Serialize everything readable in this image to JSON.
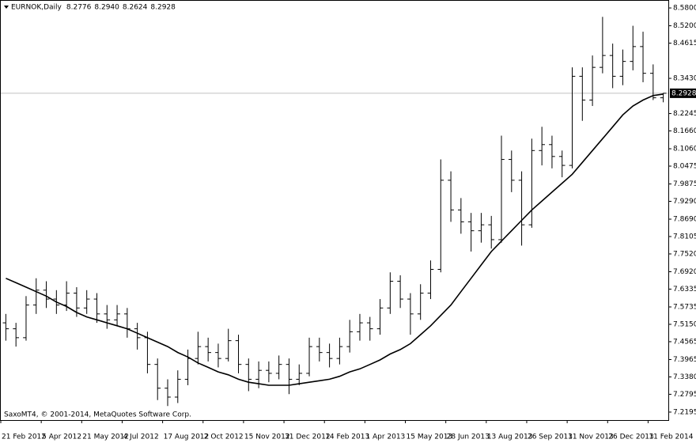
{
  "chart_data": {
    "type": "ohlc",
    "symbol": "EURNOK,Daily",
    "ohlc_text": [
      "8.2776",
      "8.2940",
      "8.2624",
      "8.2928"
    ],
    "footer": "SaxoMT4, © 2001-2014, MetaQuotes Software Corp.",
    "categories": [
      "21 Feb 2012",
      null,
      null,
      null,
      "5 Apr 2012",
      null,
      null,
      null,
      "21 May 2012",
      null,
      null,
      null,
      "4 Jul 2012",
      null,
      null,
      null,
      "17 Aug 2012",
      null,
      null,
      null,
      "2 Oct 2012",
      null,
      null,
      null,
      "15 Nov 2012",
      null,
      null,
      null,
      "31 Dec 2012",
      null,
      null,
      null,
      "14 Feb 2013",
      null,
      null,
      null,
      "1 Apr 2013",
      null,
      null,
      null,
      "15 May 2013",
      null,
      null,
      null,
      "28 Jun 2013",
      null,
      null,
      null,
      "13 Aug 2013",
      null,
      null,
      null,
      "26 Sep 2013",
      null,
      null,
      null,
      "11 Nov 2013",
      null,
      null,
      null,
      "26 Dec 2013",
      null,
      null,
      null,
      "11 Feb 2014",
      null
    ],
    "open": [
      7.52,
      7.5,
      7.47,
      7.58,
      7.63,
      7.6,
      7.58,
      7.62,
      7.57,
      7.6,
      7.55,
      7.53,
      7.55,
      7.5,
      7.47,
      7.38,
      7.3,
      7.27,
      7.33,
      7.4,
      7.44,
      7.42,
      7.4,
      7.46,
      7.38,
      7.33,
      7.36,
      7.35,
      7.38,
      7.33,
      7.35,
      7.44,
      7.42,
      7.4,
      7.44,
      7.49,
      7.52,
      7.5,
      7.57,
      7.66,
      7.6,
      7.55,
      7.62,
      7.7,
      8.0,
      7.9,
      7.86,
      7.83,
      7.85,
      7.8,
      8.07,
      8.0,
      7.85,
      8.1,
      8.12,
      8.08,
      8.05,
      8.35,
      8.27,
      8.38,
      8.42,
      8.35,
      8.4,
      8.45,
      8.36,
      8.2776
    ],
    "high": [
      7.55,
      7.52,
      7.61,
      7.67,
      7.66,
      7.63,
      7.66,
      7.64,
      7.63,
      7.62,
      7.58,
      7.58,
      7.57,
      7.52,
      7.49,
      7.4,
      7.33,
      7.36,
      7.43,
      7.49,
      7.47,
      7.45,
      7.5,
      7.48,
      7.4,
      7.39,
      7.39,
      7.41,
      7.4,
      7.38,
      7.47,
      7.47,
      7.45,
      7.47,
      7.53,
      7.55,
      7.54,
      7.6,
      7.69,
      7.68,
      7.62,
      7.65,
      7.73,
      8.07,
      8.03,
      7.94,
      7.89,
      7.89,
      7.88,
      8.15,
      8.1,
      8.03,
      8.14,
      8.18,
      8.15,
      8.1,
      8.38,
      8.38,
      8.42,
      8.55,
      8.46,
      8.44,
      8.52,
      8.5,
      8.39,
      8.294
    ],
    "low": [
      7.46,
      7.44,
      7.46,
      7.55,
      7.57,
      7.55,
      7.56,
      7.54,
      7.55,
      7.52,
      7.5,
      7.51,
      7.47,
      7.43,
      7.35,
      7.26,
      7.24,
      7.25,
      7.31,
      7.38,
      7.39,
      7.37,
      7.39,
      7.35,
      7.29,
      7.3,
      7.32,
      7.33,
      7.28,
      7.31,
      7.34,
      7.39,
      7.37,
      7.38,
      7.42,
      7.46,
      7.46,
      7.48,
      7.55,
      7.57,
      7.48,
      7.53,
      7.6,
      7.69,
      7.86,
      7.82,
      7.76,
      7.79,
      7.77,
      7.79,
      7.96,
      7.78,
      7.84,
      8.05,
      8.04,
      8.01,
      8.04,
      8.2,
      8.25,
      8.36,
      8.31,
      8.32,
      8.37,
      8.33,
      8.27,
      8.2624
    ],
    "close": [
      7.5,
      7.47,
      7.58,
      7.63,
      7.6,
      7.58,
      7.62,
      7.57,
      7.6,
      7.55,
      7.53,
      7.55,
      7.5,
      7.47,
      7.38,
      7.3,
      7.27,
      7.33,
      7.4,
      7.44,
      7.42,
      7.4,
      7.46,
      7.38,
      7.33,
      7.36,
      7.35,
      7.38,
      7.33,
      7.35,
      7.44,
      7.42,
      7.4,
      7.44,
      7.49,
      7.52,
      7.5,
      7.57,
      7.66,
      7.6,
      7.55,
      7.62,
      7.7,
      8.0,
      7.9,
      7.86,
      7.83,
      7.85,
      7.8,
      8.07,
      8.0,
      7.85,
      8.1,
      8.12,
      8.08,
      8.05,
      8.35,
      8.27,
      8.38,
      8.42,
      8.35,
      8.4,
      8.45,
      8.36,
      8.2776,
      8.2928
    ],
    "ma": [
      7.67,
      7.655,
      7.64,
      7.625,
      7.61,
      7.59,
      7.575,
      7.555,
      7.54,
      7.53,
      7.52,
      7.51,
      7.5,
      7.485,
      7.47,
      7.455,
      7.44,
      7.42,
      7.405,
      7.385,
      7.37,
      7.355,
      7.345,
      7.33,
      7.32,
      7.315,
      7.31,
      7.31,
      7.31,
      7.315,
      7.32,
      7.325,
      7.33,
      7.34,
      7.355,
      7.365,
      7.38,
      7.395,
      7.415,
      7.43,
      7.45,
      7.48,
      7.51,
      7.545,
      7.58,
      7.625,
      7.67,
      7.715,
      7.76,
      7.795,
      7.83,
      7.865,
      7.9,
      7.93,
      7.96,
      7.99,
      8.02,
      8.06,
      8.1,
      8.14,
      8.18,
      8.22,
      8.25,
      8.27,
      8.285,
      8.29
    ],
    "price_line": {
      "value": 8.2928,
      "label": "8.2928"
    },
    "ylim": [
      7.1927,
      8.6041
    ],
    "yticks": [
      {
        "value": 8.58,
        "label": "8.5800"
      },
      {
        "value": 8.52,
        "label": "8.5200"
      },
      {
        "value": 8.4615,
        "label": "8.4615"
      },
      {
        "value": 8.343,
        "label": "8.3430"
      },
      {
        "value": 8.2245,
        "label": "8.2245"
      },
      {
        "value": 8.166,
        "label": "8.1660"
      },
      {
        "value": 8.106,
        "label": "8.1060"
      },
      {
        "value": 8.0475,
        "label": "8.0475"
      },
      {
        "value": 7.9875,
        "label": "7.9875"
      },
      {
        "value": 7.929,
        "label": "7.9290"
      },
      {
        "value": 7.869,
        "label": "7.8690"
      },
      {
        "value": 7.8105,
        "label": "7.8105"
      },
      {
        "value": 7.752,
        "label": "7.7520"
      },
      {
        "value": 7.692,
        "label": "7.6920"
      },
      {
        "value": 7.6335,
        "label": "7.6335"
      },
      {
        "value": 7.5735,
        "label": "7.5735"
      },
      {
        "value": 7.515,
        "label": "7.5150"
      },
      {
        "value": 7.4565,
        "label": "7.4565"
      },
      {
        "value": 7.3965,
        "label": "7.3965"
      },
      {
        "value": 7.338,
        "label": "7.3380"
      },
      {
        "value": 7.2795,
        "label": "7.2795"
      },
      {
        "value": 7.2195,
        "label": "7.2195"
      }
    ],
    "color": "#000000",
    "price_line_color": "#c0c0c0",
    "grid": false
  }
}
